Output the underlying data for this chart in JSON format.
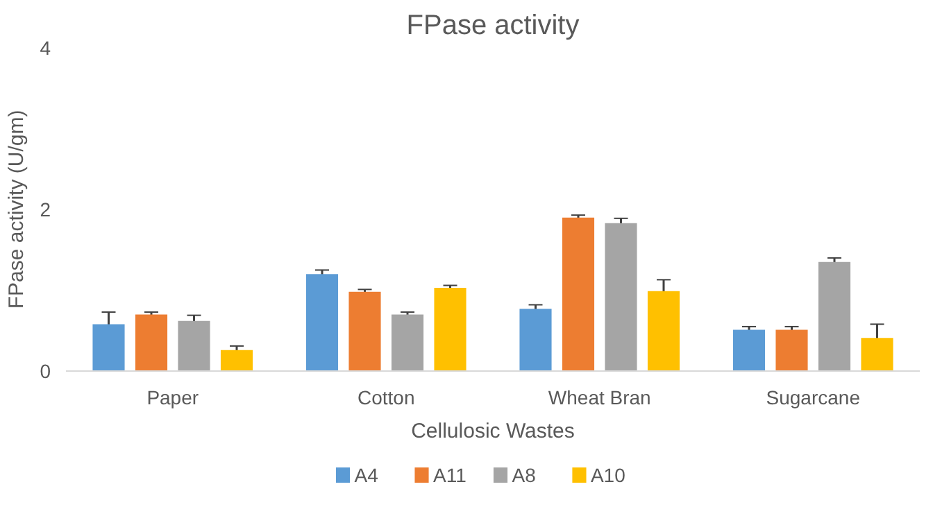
{
  "chart_data": {
    "type": "bar",
    "title": "FPase activity",
    "xlabel": "Cellulosic Wastes",
    "ylabel": "FPase activity (U/gm)",
    "categories": [
      "Paper",
      "Cotton",
      "Wheat Bran",
      "Sugarcane"
    ],
    "series": [
      {
        "name": "A4",
        "color": "#5b9bd5",
        "values": [
          0.58,
          1.2,
          0.77,
          0.51
        ],
        "errors": [
          0.15,
          0.05,
          0.05,
          0.04
        ]
      },
      {
        "name": "A11",
        "color": "#ed7d31",
        "values": [
          0.7,
          0.98,
          1.9,
          0.51
        ],
        "errors": [
          0.03,
          0.03,
          0.03,
          0.04
        ]
      },
      {
        "name": "A8",
        "color": "#a5a5a5",
        "values": [
          0.62,
          0.7,
          1.83,
          1.35
        ],
        "errors": [
          0.07,
          0.03,
          0.06,
          0.05
        ]
      },
      {
        "name": "A10",
        "color": "#ffc000",
        "values": [
          0.26,
          1.03,
          0.99,
          0.41
        ],
        "errors": [
          0.05,
          0.03,
          0.14,
          0.17
        ]
      }
    ],
    "ylim": [
      0,
      4
    ],
    "yticks": [
      0,
      2,
      4
    ],
    "grid": false,
    "legend": "bottom"
  }
}
